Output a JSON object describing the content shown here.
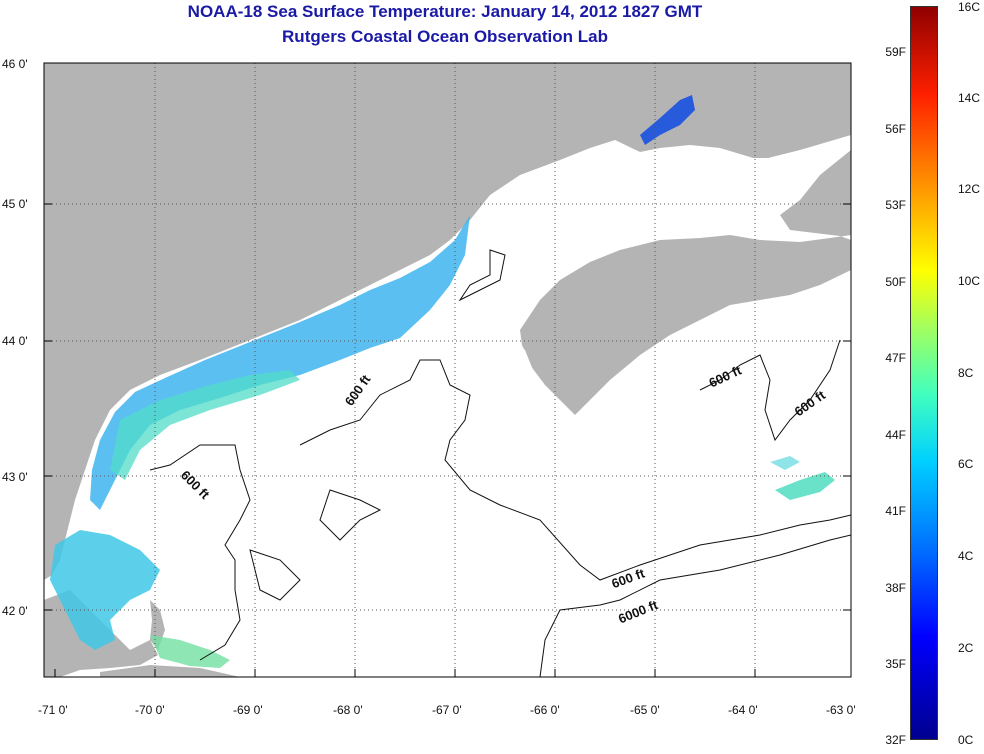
{
  "title": {
    "line1": "NOAA-18 Sea Surface Temperature:  January 14, 2012 1827 GMT",
    "line2": "Rutgers Coastal Ocean Observation Lab"
  },
  "axes": {
    "lat_labels": [
      "46 0'",
      "45 0'",
      "44 0'",
      "43 0'",
      "42 0'"
    ],
    "lon_labels": [
      "-71 0'",
      "-70 0'",
      "-69 0'",
      "-68 0'",
      "-67 0'",
      "-66 0'",
      "-65 0'",
      "-64 0'",
      "-63 0'"
    ]
  },
  "contours": {
    "c1": "600 ft",
    "c2": "600 ft",
    "c3": "600 ft",
    "c4": "600 ft",
    "c5": "600 ft",
    "c6": "6000 ft"
  },
  "colorbar": {
    "celsius": [
      "16C",
      "14C",
      "12C",
      "10C",
      "8C",
      "6C",
      "4C",
      "2C",
      "0C"
    ],
    "fahrenheit": [
      "59F",
      "56F",
      "53F",
      "50F",
      "47F",
      "44F",
      "41F",
      "38F",
      "35F",
      "32F"
    ],
    "min_c": 0,
    "max_c": 16
  },
  "colors": {
    "land": "#b4b4b4",
    "ocean": "#ffffff",
    "title": "#1a1aa6",
    "grid": "#555555"
  }
}
